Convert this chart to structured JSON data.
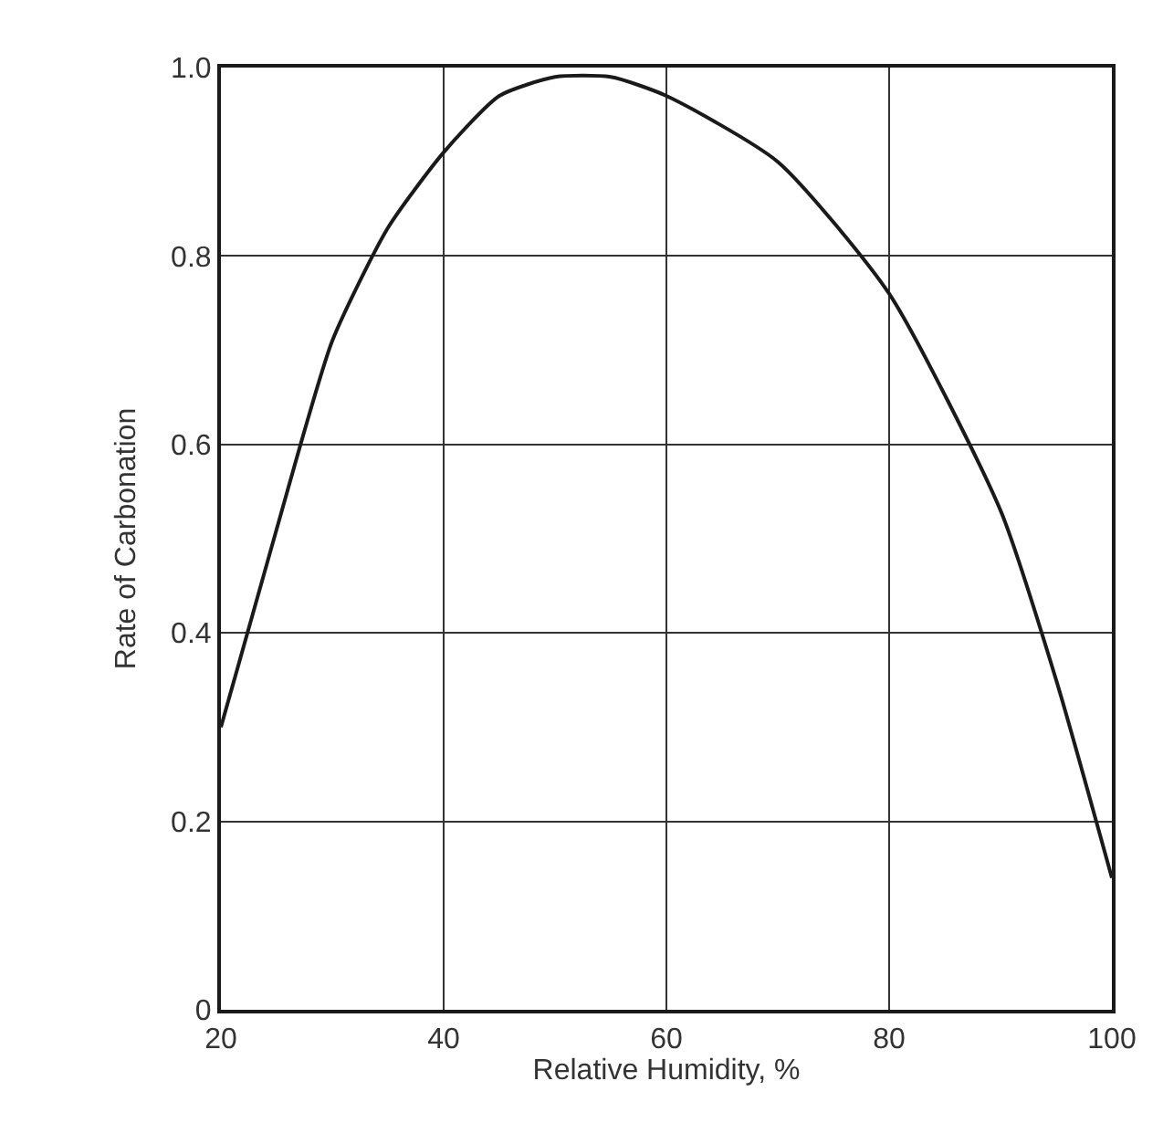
{
  "chart_data": {
    "type": "line",
    "xlabel": "Relative Humidity, %",
    "ylabel": "Rate of Carbonation",
    "x": [
      20,
      25,
      30,
      35,
      40,
      45,
      50,
      55,
      60,
      70,
      80,
      90,
      95,
      100
    ],
    "series": [
      {
        "color": "#1a1a1a",
        "values": [
          0.3,
          0.51,
          0.71,
          0.83,
          0.91,
          0.97,
          0.99,
          0.99,
          0.97,
          0.9,
          0.76,
          0.53,
          0.35,
          0.14
        ]
      }
    ],
    "xlim": [
      20,
      100
    ],
    "ylim": [
      0,
      1
    ],
    "xticks": [
      20,
      40,
      60,
      80,
      100
    ],
    "yticks": [
      0,
      {
        "value": 0.2,
        "label": "0.2"
      },
      {
        "value": 0.4,
        "label": "0.4"
      },
      {
        "value": 0.6,
        "label": "0.6"
      },
      {
        "value": 0.8,
        "label": "0.8"
      },
      {
        "value": 1,
        "label": "1.0"
      }
    ],
    "grid": true,
    "marker": "none",
    "line_style": "solid",
    "legend": false
  }
}
